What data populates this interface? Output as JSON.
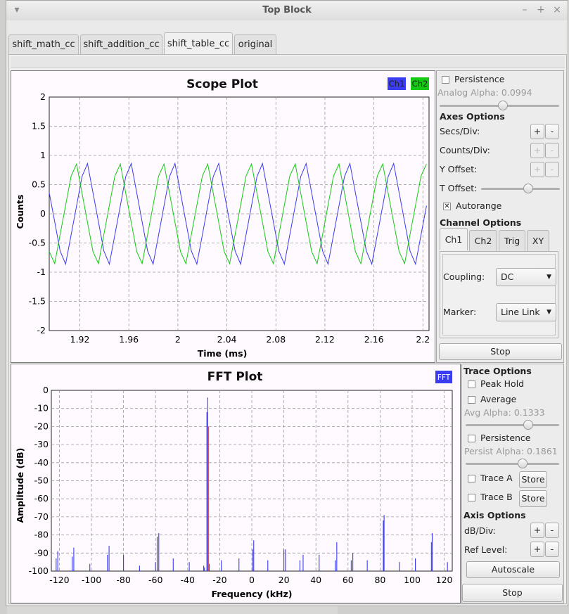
{
  "window": {
    "title": "Top Block",
    "menu_glyph": "▾",
    "minimize_glyph": "–",
    "maximize_glyph": "+",
    "close_glyph": "×"
  },
  "tabs": [
    {
      "label": "shift_math_cc"
    },
    {
      "label": "shift_addition_cc"
    },
    {
      "label": "shift_table_cc",
      "active": true
    },
    {
      "label": "original"
    }
  ],
  "scope": {
    "title": "Scope Plot",
    "legend": [
      {
        "name": "Ch1",
        "color": "#3b3bf0"
      },
      {
        "name": "Ch2",
        "color": "#14c814"
      }
    ],
    "xlabel": "Time (ms)",
    "ylabel": "Counts",
    "xticks": [
      "1.92",
      "1.96",
      "2",
      "2.04",
      "2.08",
      "2.12",
      "2.16",
      "2.2"
    ],
    "yticks": [
      "2",
      "1.5",
      "1",
      "0.5",
      "0",
      "-0.5",
      "-1",
      "-1.5",
      "-2"
    ]
  },
  "scope_controls": {
    "persistence_label": "Persistence",
    "analog_alpha_label": "Analog Alpha: 0.0994",
    "analog_alpha": 0.0994,
    "axes_options_label": "Axes Options",
    "secs_div_label": "Secs/Div:",
    "counts_div_label": "Counts/Div:",
    "y_offset_label": "Y Offset:",
    "t_offset_label": "T Offset:",
    "t_offset_fraction": 0.6,
    "autorange_label": "Autorange",
    "autorange_checked": true,
    "plus": "+",
    "minus": "-",
    "channel_options_label": "Channel Options",
    "channel_tabs": [
      "Ch1",
      "Ch2",
      "Trig",
      "XY"
    ],
    "coupling_label": "Coupling:",
    "coupling_value": "DC",
    "marker_label": "Marker:",
    "marker_value": "Line Link",
    "stop_label": "Stop"
  },
  "fft": {
    "title": "FFT Plot",
    "legend": [
      {
        "name": "FFT",
        "color": "#3b3bf0"
      }
    ],
    "xlabel": "Frequency (kHz)",
    "ylabel": "Amplitude (dB)",
    "xticks": [
      "-120",
      "-100",
      "-80",
      "-60",
      "-40",
      "-20",
      "0",
      "20",
      "40",
      "60",
      "80",
      "100",
      "120"
    ],
    "yticks": [
      "0",
      "-10",
      "-20",
      "-30",
      "-40",
      "-50",
      "-60",
      "-70",
      "-80",
      "-90",
      "-100"
    ]
  },
  "fft_controls": {
    "trace_options_label": "Trace Options",
    "peak_hold_label": "Peak Hold",
    "average_label": "Average",
    "avg_alpha_label": "Avg Alpha: 0.1333",
    "avg_alpha": 0.1333,
    "persistence_label": "Persistence",
    "persist_alpha_label": "Persist Alpha: 0.1861",
    "persist_alpha": 0.1861,
    "trace_a_label": "Trace A",
    "trace_b_label": "Trace B",
    "store_label": "Store",
    "axis_options_label": "Axis Options",
    "db_div_label": "dB/Div:",
    "ref_level_label": "Ref Level:",
    "plus": "+",
    "minus": "-",
    "autoscale_label": "Autoscale",
    "stop_label": "Stop"
  },
  "chart_data": [
    {
      "type": "line",
      "title": "Scope Plot",
      "xlabel": "Time (ms)",
      "ylabel": "Counts",
      "xlim": [
        1.895,
        2.205
      ],
      "ylim": [
        -2,
        2
      ],
      "grid": true,
      "legend": "top-right",
      "series": [
        {
          "name": "Ch1",
          "color": "#3b3bf0",
          "waveform": "cosine",
          "amplitude": 1,
          "period_ms": 0.0357,
          "peak_at_ms": 1.925
        },
        {
          "name": "Ch2",
          "color": "#14c814",
          "waveform": "sine",
          "amplitude": 1,
          "period_ms": 0.0357,
          "peak_at_ms": 1.916
        }
      ]
    },
    {
      "type": "bar",
      "title": "FFT Plot",
      "xlabel": "Frequency (kHz)",
      "ylabel": "Amplitude (dB)",
      "xlim": [
        -125,
        125
      ],
      "ylim": [
        -100,
        0
      ],
      "grid": true,
      "legend": "top-right",
      "series": [
        {
          "name": "FFT",
          "color": "#3b3bf0",
          "points": [
            [
              -122,
              -93
            ],
            [
              -121,
              -89
            ],
            [
              -112,
              -92
            ],
            [
              -111,
              -87
            ],
            [
              -101,
              -96
            ],
            [
              -90,
              -91
            ],
            [
              -89,
              -86
            ],
            [
              -80,
              -91
            ],
            [
              -70,
              -97
            ],
            [
              -60,
              -95
            ],
            [
              -59,
              -81
            ],
            [
              -58,
              -79
            ],
            [
              -49,
              -93
            ],
            [
              -39,
              -95
            ],
            [
              -30,
              -97
            ],
            [
              -29.5,
              -98
            ],
            [
              -28,
              -12
            ],
            [
              -27.5,
              -4
            ],
            [
              -26.5,
              -96
            ],
            [
              -19,
              -94
            ],
            [
              -8,
              -93
            ],
            [
              0.5,
              -88
            ],
            [
              1.2,
              -83
            ],
            [
              10,
              -94
            ],
            [
              20,
              -88
            ],
            [
              21,
              -88
            ],
            [
              30,
              -94
            ],
            [
              32,
              -91
            ],
            [
              42,
              -91
            ],
            [
              52,
              -94
            ],
            [
              53,
              -84
            ],
            [
              62,
              -94
            ],
            [
              63,
              -90
            ],
            [
              72,
              -94
            ],
            [
              82,
              -72
            ],
            [
              82.5,
              -69
            ],
            [
              92,
              -95
            ],
            [
              102,
              -93
            ],
            [
              112,
              -84
            ],
            [
              112.5,
              -79
            ],
            [
              122,
              -95
            ]
          ]
        }
      ]
    }
  ]
}
